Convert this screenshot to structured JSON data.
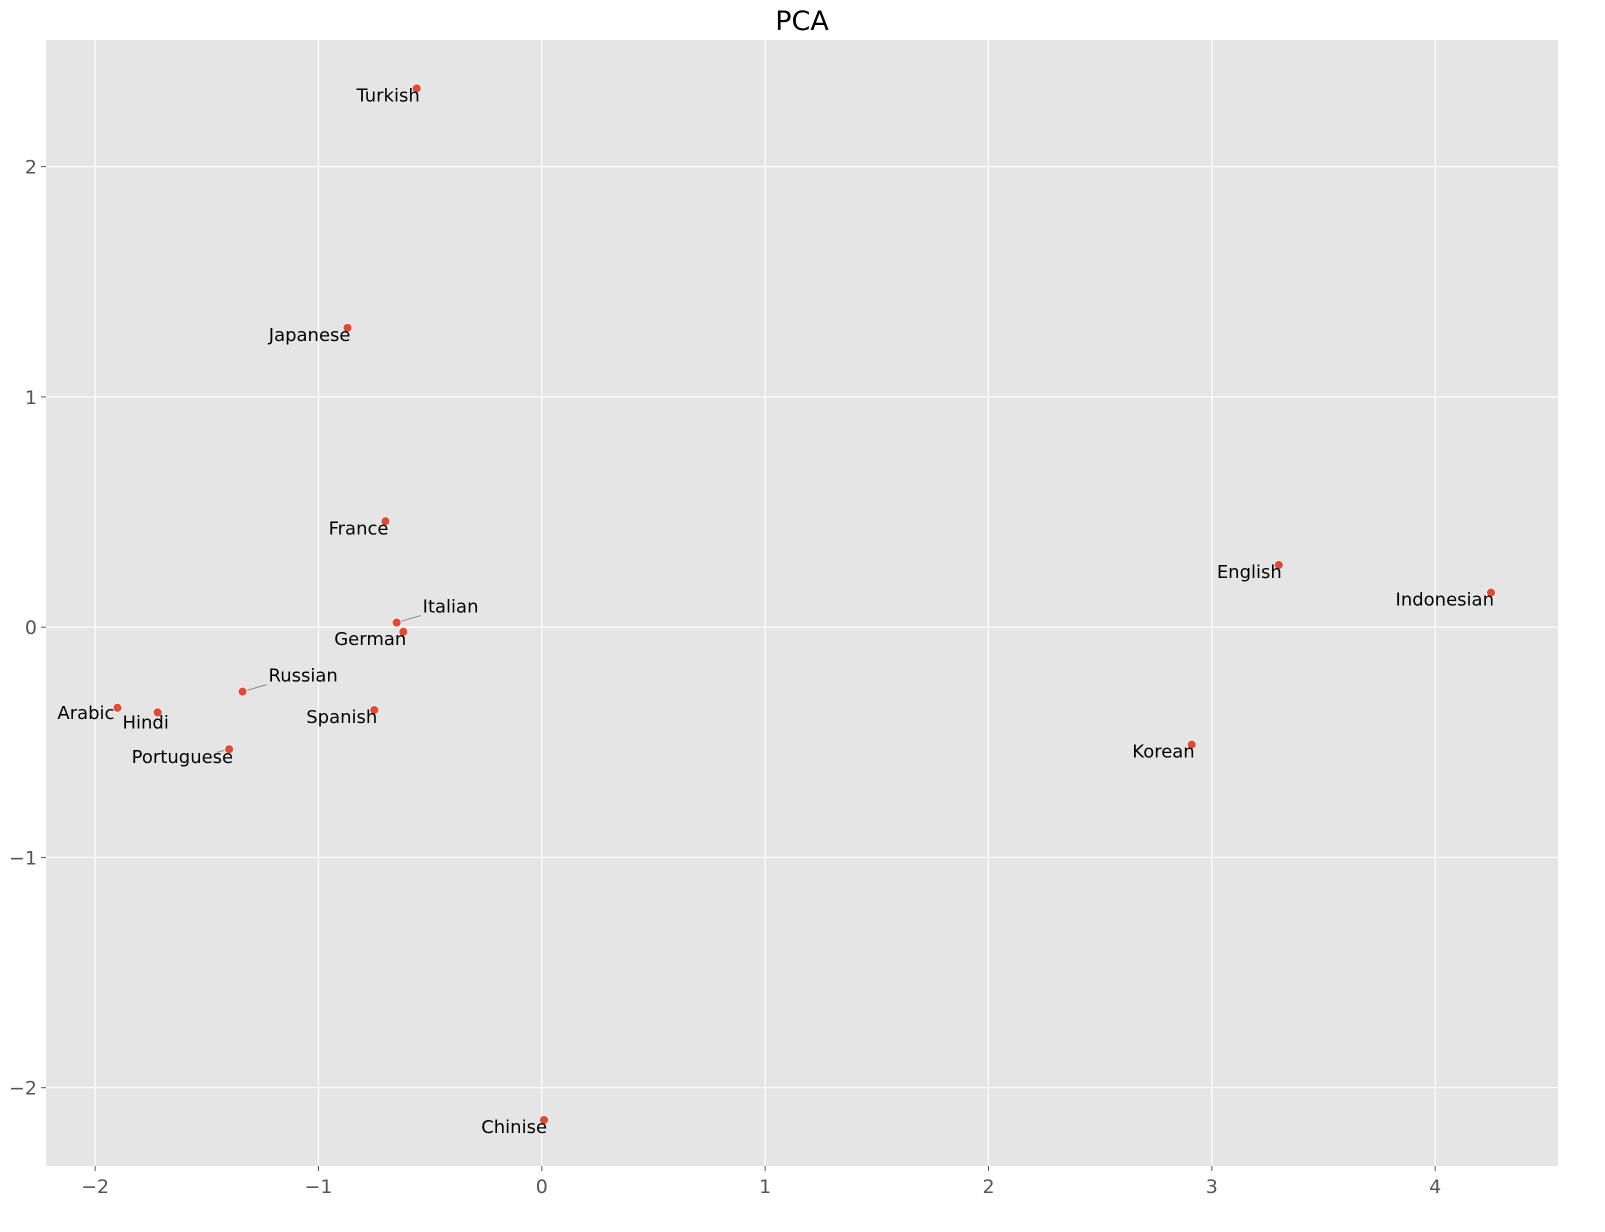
{
  "chart_data": {
    "type": "scatter",
    "title": "PCA",
    "xlabel": "",
    "ylabel": "",
    "xlim": [
      -2.22,
      4.55
    ],
    "ylim": [
      -2.34,
      2.55
    ],
    "xticks": [
      -2,
      -1,
      0,
      1,
      2,
      3,
      4
    ],
    "yticks": [
      -2,
      -1,
      0,
      1,
      2
    ],
    "xtick_labels": [
      "−2",
      "−1",
      "0",
      "1",
      "2",
      "3",
      "4"
    ],
    "ytick_labels": [
      "−2",
      "−1",
      "0",
      "1",
      "2"
    ],
    "grid": true,
    "background_color": "#e5e5e5",
    "grid_color": "#ffffff",
    "point_color": "#e24a33",
    "points": [
      {
        "label": "Turkish",
        "x": -0.56,
        "y": 2.34,
        "label_pos": "below-left"
      },
      {
        "label": "Japanese",
        "x": -0.87,
        "y": 1.3,
        "label_pos": "below-left"
      },
      {
        "label": "France",
        "x": -0.7,
        "y": 0.46,
        "label_pos": "below-left"
      },
      {
        "label": "Italian",
        "x": -0.65,
        "y": 0.02,
        "label_pos": "upper-right-leader"
      },
      {
        "label": "German",
        "x": -0.62,
        "y": -0.02,
        "label_pos": "below-left"
      },
      {
        "label": "Russian",
        "x": -1.34,
        "y": -0.28,
        "label_pos": "upper-right-leader"
      },
      {
        "label": "Spanish",
        "x": -0.75,
        "y": -0.36,
        "label_pos": "below-left"
      },
      {
        "label": "Arabic",
        "x": -1.9,
        "y": -0.35,
        "label_pos": "left"
      },
      {
        "label": "Hindi",
        "x": -1.72,
        "y": -0.37,
        "label_pos": "below"
      },
      {
        "label": "Portuguese",
        "x": -1.4,
        "y": -0.53,
        "label_pos": "below-left-leader"
      },
      {
        "label": "Chinise",
        "x": 0.01,
        "y": -2.14,
        "label_pos": "below-left"
      },
      {
        "label": "English",
        "x": 3.3,
        "y": 0.27,
        "label_pos": "below-left"
      },
      {
        "label": "Indonesian",
        "x": 4.25,
        "y": 0.15,
        "label_pos": "below-left"
      },
      {
        "label": "Korean",
        "x": 2.91,
        "y": -0.51,
        "label_pos": "below-left"
      }
    ]
  }
}
